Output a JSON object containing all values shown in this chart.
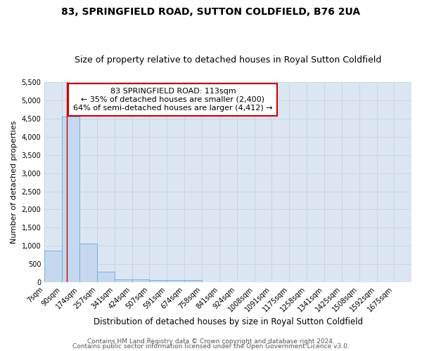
{
  "title": "83, SPRINGFIELD ROAD, SUTTON COLDFIELD, B76 2UA",
  "subtitle": "Size of property relative to detached houses in Royal Sutton Coldfield",
  "xlabel": "Distribution of detached houses by size in Royal Sutton Coldfield",
  "ylabel": "Number of detached properties",
  "footer_line1": "Contains HM Land Registry data © Crown copyright and database right 2024.",
  "footer_line2": "Contains public sector information licensed under the Open Government Licence v3.0.",
  "annotation_title": "83 SPRINGFIELD ROAD: 113sqm",
  "annotation_line2": "← 35% of detached houses are smaller (2,400)",
  "annotation_line3": "64% of semi-detached houses are larger (4,412) →",
  "bar_left_edges": [
    7,
    90,
    174,
    257,
    341,
    424,
    507,
    591,
    674,
    758,
    841,
    924,
    1008,
    1091,
    1175,
    1258,
    1341,
    1425,
    1508,
    1592
  ],
  "bar_widths": [
    83,
    84,
    83,
    84,
    83,
    83,
    84,
    83,
    84,
    83,
    83,
    84,
    83,
    84,
    83,
    83,
    84,
    83,
    84,
    83
  ],
  "bar_heights": [
    880,
    4560,
    1060,
    290,
    90,
    75,
    70,
    70,
    70,
    0,
    0,
    0,
    0,
    0,
    0,
    0,
    0,
    0,
    0,
    0
  ],
  "bar_color": "#c5d8ef",
  "bar_edge_color": "#6baed6",
  "vline_color": "#cc0000",
  "vline_x": 113,
  "ylim": [
    0,
    5500
  ],
  "yticks": [
    0,
    500,
    1000,
    1500,
    2000,
    2500,
    3000,
    3500,
    4000,
    4500,
    5000,
    5500
  ],
  "xtick_labels": [
    "7sqm",
    "90sqm",
    "174sqm",
    "257sqm",
    "341sqm",
    "424sqm",
    "507sqm",
    "591sqm",
    "674sqm",
    "758sqm",
    "841sqm",
    "924sqm",
    "1008sqm",
    "1091sqm",
    "1175sqm",
    "1258sqm",
    "1341sqm",
    "1425sqm",
    "1508sqm",
    "1592sqm",
    "1675sqm"
  ],
  "xtick_positions": [
    7,
    90,
    174,
    257,
    341,
    424,
    507,
    591,
    674,
    758,
    841,
    924,
    1008,
    1091,
    1175,
    1258,
    1341,
    1425,
    1508,
    1592,
    1675
  ],
  "xlim_left": 7,
  "xlim_right": 1758,
  "grid_color": "#c8d4e8",
  "bg_color": "#ffffff",
  "plot_bg_color": "#dce6f2",
  "annotation_box_color": "#ffffff",
  "annotation_box_edge": "#cc0000",
  "title_fontsize": 10,
  "subtitle_fontsize": 9,
  "annotation_fontsize": 8,
  "tick_fontsize": 7,
  "ylabel_fontsize": 8,
  "xlabel_fontsize": 8.5,
  "footer_fontsize": 6.5
}
